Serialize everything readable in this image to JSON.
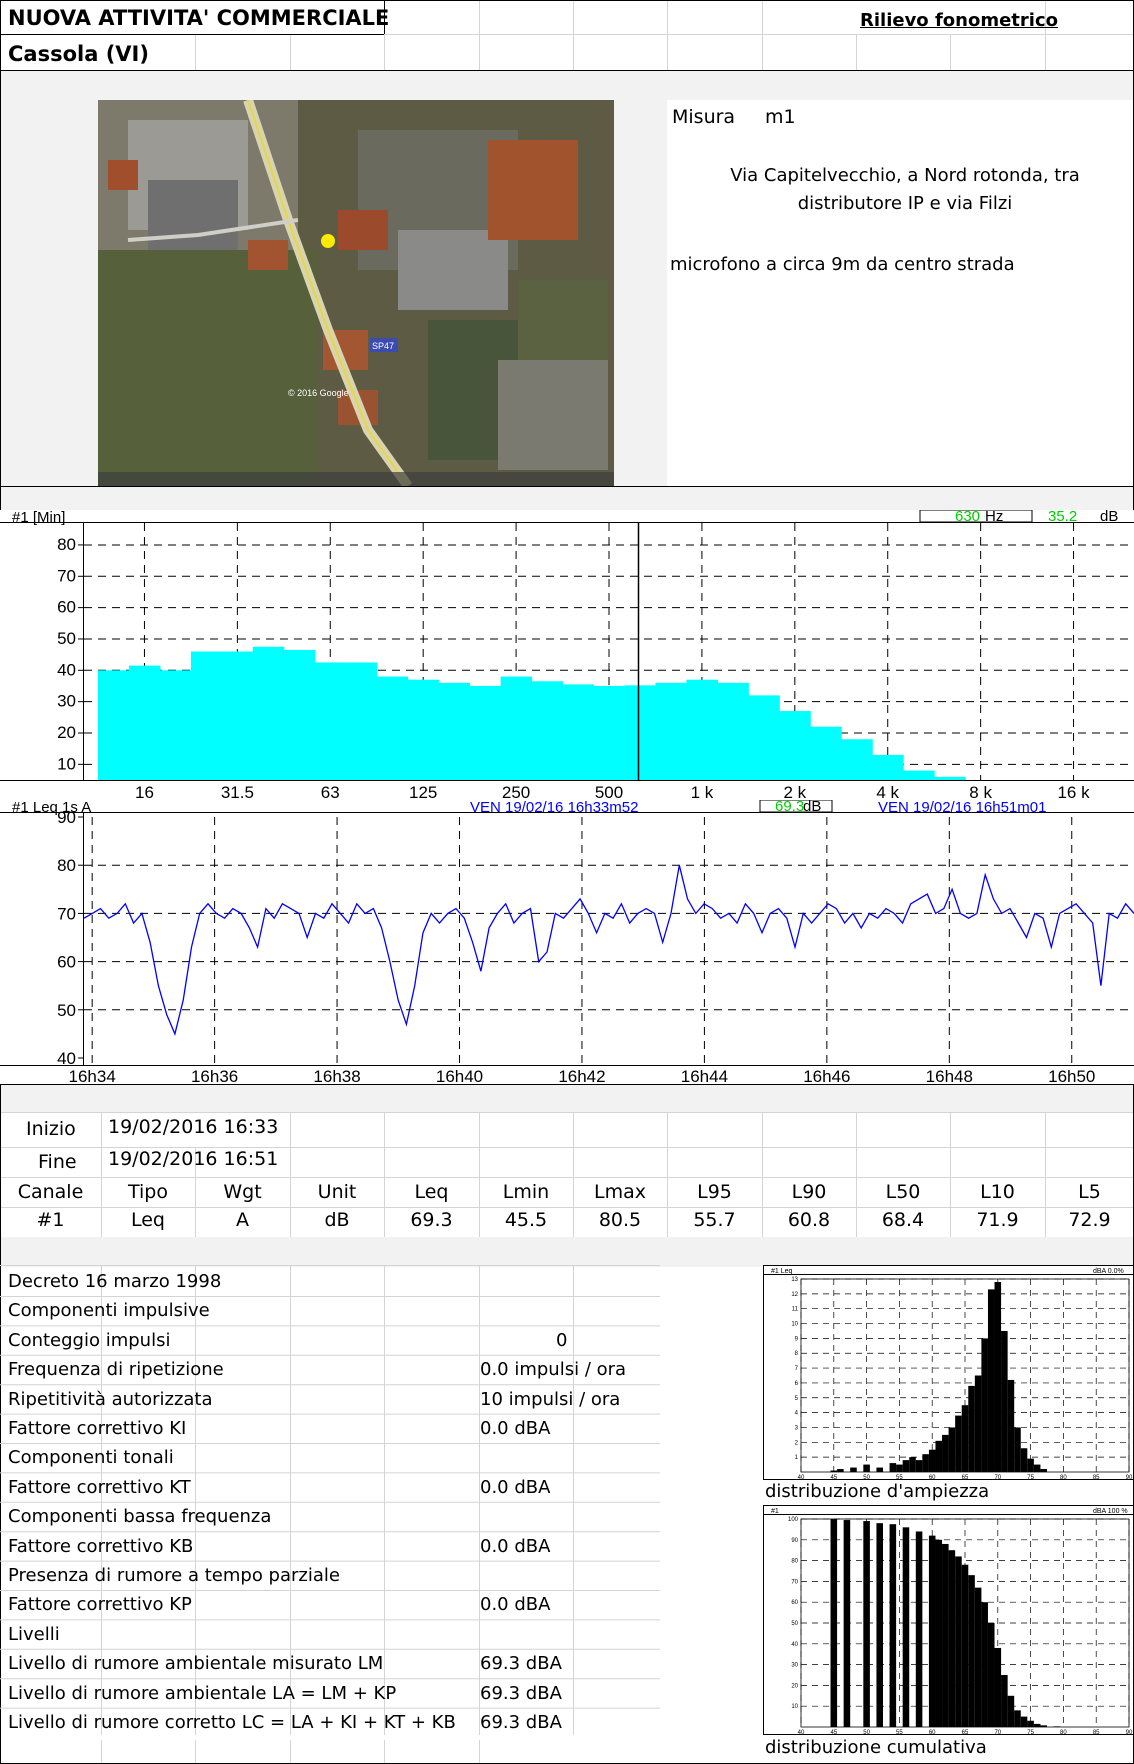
{
  "header": {
    "title": "NUOVA ATTIVITA' COMMERCIALE",
    "location": "Cassola (VI)",
    "report_type": "Rilievo fonometrico"
  },
  "measure": {
    "label": "Misura",
    "id": "m1",
    "address": "Via Capitelvecchio, a Nord rotonda, tra distributore IP e via Filzi",
    "mic_note": "microfono a circa 9m da centro strada"
  },
  "map": {
    "road_label": "SP47",
    "footer": "© 2016 Google"
  },
  "spectrum": {
    "header_left": "#1 [Min]",
    "freq_value": "630",
    "freq_unit": "Hz",
    "level_value": "35.2",
    "level_unit": "dB"
  },
  "timeline": {
    "header_left": "#1  Leq 1s  A",
    "start": "VEN 19/02/16 16h33m52",
    "level_value": "69.3",
    "level_unit": "dB",
    "end": "VEN 19/02/16 16h51m01"
  },
  "chart_data": [
    {
      "type": "bar",
      "title": "",
      "categories": [
        "12.5",
        "16",
        "20",
        "25",
        "31.5",
        "40",
        "50",
        "63",
        "80",
        "100",
        "125",
        "160",
        "200",
        "250",
        "315",
        "400",
        "500",
        "630",
        "800",
        "1k",
        "1.25k",
        "1.6k",
        "2k",
        "2.5k",
        "3.15k",
        "4k",
        "5k",
        "6.3k",
        "8k",
        "10k",
        "12.5k",
        "16k",
        "20k"
      ],
      "values": [
        40,
        41.5,
        40,
        46,
        46,
        47.5,
        46.5,
        42.5,
        42.5,
        38,
        37,
        36,
        35,
        38,
        36.5,
        35.5,
        35,
        35.2,
        36,
        37,
        36,
        32,
        27,
        22,
        18,
        13,
        8,
        6,
        4.5,
        4,
        3.5,
        3.5,
        3
      ],
      "tick_labels": [
        "16",
        "31.5",
        "63",
        "125",
        "250",
        "500",
        "1 k",
        "2 k",
        "4 k",
        "8 k",
        "16 k"
      ],
      "ylabel_ticks": [
        10,
        20,
        30,
        40,
        50,
        60,
        70,
        80
      ],
      "ylim": [
        5,
        87
      ],
      "color": "#00ffff"
    },
    {
      "type": "line",
      "title": "",
      "x_ticks": [
        "16h34",
        "16h36",
        "16h38",
        "16h40",
        "16h42",
        "16h44",
        "16h46",
        "16h48",
        "16h50"
      ],
      "y_ticks": [
        40,
        50,
        60,
        70,
        80,
        90
      ],
      "ylim": [
        40,
        90
      ],
      "time_start": "16:33:52",
      "time_end": "16:51:01",
      "color": "#0000ff",
      "y": [
        69,
        70,
        71,
        69,
        70,
        72,
        68,
        70,
        64,
        55,
        49,
        45,
        52,
        63,
        70,
        72,
        70,
        69,
        71,
        70,
        67,
        63,
        71,
        69,
        72,
        71,
        70,
        65,
        70,
        69,
        72,
        70,
        68,
        72,
        70,
        71,
        67,
        60,
        52,
        47,
        55,
        66,
        70,
        68,
        70,
        71,
        69,
        64,
        58,
        67,
        70,
        72,
        68,
        70,
        71,
        60,
        62,
        70,
        69,
        71,
        73,
        70,
        66,
        70,
        69,
        72,
        68,
        70,
        71,
        70,
        64,
        70,
        80,
        73,
        70,
        72,
        71,
        69,
        70,
        68,
        72,
        70,
        66,
        70,
        71,
        69,
        63,
        70,
        68,
        70,
        72,
        71,
        68,
        70,
        67,
        70,
        69,
        71,
        70,
        68,
        72,
        73,
        74,
        70,
        71,
        75,
        70,
        69,
        70,
        78,
        73,
        70,
        71,
        68,
        65,
        70,
        69,
        63,
        70,
        71,
        72,
        70,
        68,
        55,
        70,
        69,
        72,
        70
      ]
    },
    {
      "type": "bar",
      "title": "distribuzione d'ampiezza",
      "x_ticks": [
        40,
        45,
        50,
        55,
        60,
        65,
        70,
        75,
        80,
        85,
        90
      ],
      "y_ticks": [
        1,
        2,
        3,
        4,
        5,
        6,
        7,
        8,
        9,
        10,
        11,
        12,
        13
      ],
      "values": [
        {
          "x": 45,
          "y": 0.1
        },
        {
          "x": 46,
          "y": 0.2
        },
        {
          "x": 48,
          "y": 0.3
        },
        {
          "x": 50,
          "y": 0.5
        },
        {
          "x": 52,
          "y": 0.3
        },
        {
          "x": 54,
          "y": 0.6
        },
        {
          "x": 55,
          "y": 0.5
        },
        {
          "x": 56,
          "y": 0.8
        },
        {
          "x": 57,
          "y": 1.0
        },
        {
          "x": 58,
          "y": 0.8
        },
        {
          "x": 59,
          "y": 1.2
        },
        {
          "x": 60,
          "y": 1.5
        },
        {
          "x": 61,
          "y": 2.1
        },
        {
          "x": 62,
          "y": 2.5
        },
        {
          "x": 63,
          "y": 3.0
        },
        {
          "x": 64,
          "y": 3.8
        },
        {
          "x": 65,
          "y": 4.5
        },
        {
          "x": 66,
          "y": 5.8
        },
        {
          "x": 67,
          "y": 6.5
        },
        {
          "x": 68,
          "y": 9.0
        },
        {
          "x": 69,
          "y": 12.3
        },
        {
          "x": 70,
          "y": 12.8
        },
        {
          "x": 71,
          "y": 9.5
        },
        {
          "x": 72,
          "y": 6.2
        },
        {
          "x": 73,
          "y": 3.0
        },
        {
          "x": 74,
          "y": 1.6
        },
        {
          "x": 75,
          "y": 0.9
        },
        {
          "x": 76,
          "y": 0.5
        },
        {
          "x": 77,
          "y": 0.2
        }
      ]
    },
    {
      "type": "bar",
      "title": "distribuzione cumulativa",
      "x_ticks": [
        40,
        45,
        50,
        55,
        60,
        65,
        70,
        75,
        80,
        85,
        90
      ],
      "y_ticks": [
        10,
        20,
        30,
        40,
        50,
        60,
        70,
        80,
        90,
        100
      ],
      "values": [
        {
          "x": 45,
          "y": 100
        },
        {
          "x": 47,
          "y": 99.5
        },
        {
          "x": 50,
          "y": 99
        },
        {
          "x": 52,
          "y": 98
        },
        {
          "x": 54,
          "y": 97.5
        },
        {
          "x": 56,
          "y": 96
        },
        {
          "x": 58,
          "y": 94
        },
        {
          "x": 60,
          "y": 92
        },
        {
          "x": 61,
          "y": 90
        },
        {
          "x": 62,
          "y": 88
        },
        {
          "x": 63,
          "y": 85
        },
        {
          "x": 64,
          "y": 82
        },
        {
          "x": 65,
          "y": 78
        },
        {
          "x": 66,
          "y": 73
        },
        {
          "x": 67,
          "y": 67
        },
        {
          "x": 68,
          "y": 60
        },
        {
          "x": 69,
          "y": 50
        },
        {
          "x": 70,
          "y": 38
        },
        {
          "x": 71,
          "y": 25
        },
        {
          "x": 72,
          "y": 15
        },
        {
          "x": 73,
          "y": 8
        },
        {
          "x": 74,
          "y": 5
        },
        {
          "x": 75,
          "y": 3
        },
        {
          "x": 76,
          "y": 1.5
        },
        {
          "x": 77,
          "y": 0.8
        },
        {
          "x": 79,
          "y": 0.3
        }
      ]
    }
  ],
  "interval": {
    "start_label": "Inizio",
    "start_value": "19/02/2016 16:33",
    "end_label": "Fine",
    "end_value": "19/02/2016 16:51"
  },
  "results": {
    "headers": [
      "Canale",
      "Tipo",
      "Wgt",
      "Unit",
      "Leq",
      "Lmin",
      "Lmax",
      "L95",
      "L90",
      "L50",
      "L10",
      "L5"
    ],
    "row": [
      "#1",
      "Leq",
      "A",
      "dB",
      "69.3",
      "45.5",
      "80.5",
      "55.7",
      "60.8",
      "68.4",
      "71.9",
      "72.9"
    ]
  },
  "decreto": [
    {
      "label": "Decreto 16 marzo 1998",
      "value": ""
    },
    {
      "label": "Componenti impulsive",
      "value": ""
    },
    {
      "label": "Conteggio impulsi",
      "value": "0"
    },
    {
      "label": "Frequenza di ripetizione",
      "value": "0.0 impulsi / ora"
    },
    {
      "label": "Ripetitività autorizzata",
      "value": "10 impulsi / ora"
    },
    {
      "label": "Fattore correttivo KI",
      "value": "0.0 dBA"
    },
    {
      "label": "Componenti tonali",
      "value": ""
    },
    {
      "label": "Fattore correttivo KT",
      "value": "0.0 dBA"
    },
    {
      "label": "Componenti bassa frequenza",
      "value": ""
    },
    {
      "label": "Fattore correttivo KB",
      "value": "0.0 dBA"
    },
    {
      "label": "Presenza di rumore a tempo parziale",
      "value": ""
    },
    {
      "label": "Fattore correttivo KP",
      "value": "0.0 dBA"
    },
    {
      "label": "Livelli",
      "value": ""
    },
    {
      "label": "Livello di rumore ambientale misurato LM",
      "value": "69.3 dBA"
    },
    {
      "label": "Livello di rumore ambientale  LA = LM + KP",
      "value": "69.3 dBA"
    },
    {
      "label": "Livello di rumore corretto  LC = LA + KI + KT + KB",
      "value": "69.3 dBA"
    }
  ],
  "hist_headers": {
    "amp_left": "#1 Leq",
    "amp_right": "dBA  0.0%",
    "cum_left": "#1",
    "cum_right": "dBA  100 %"
  }
}
